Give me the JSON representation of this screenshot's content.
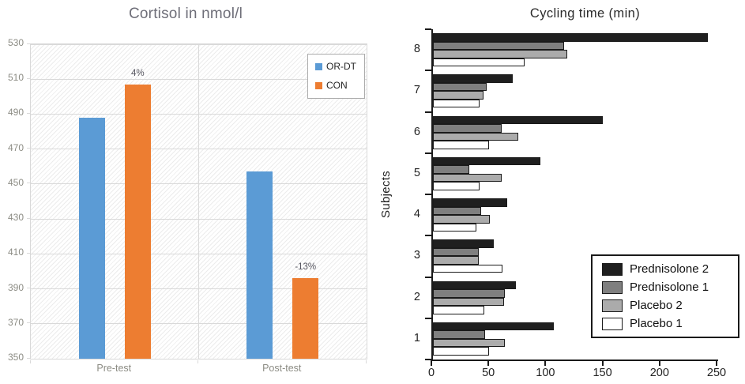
{
  "chart_data": [
    {
      "id": "cortisol",
      "type": "bar",
      "title": "Cortisol in nmol/l",
      "categories": [
        "Pre-test",
        "Post-test"
      ],
      "series": [
        {
          "name": "OR-DT",
          "color": "#5b9bd5",
          "values": [
            488,
            457
          ]
        },
        {
          "name": "CON",
          "color": "#ed7d31",
          "values": [
            507,
            396
          ]
        }
      ],
      "annotations": [
        {
          "text": "4%",
          "category_index": 0,
          "series_index": 1
        },
        {
          "text": "-13%",
          "category_index": 1,
          "series_index": 1
        }
      ],
      "ylim": [
        350,
        530
      ],
      "yticks": [
        350,
        370,
        390,
        410,
        430,
        450,
        470,
        490,
        510,
        530
      ],
      "grid": true,
      "legend_position": "top-right",
      "plot_background": "diagonal-hatch",
      "colors": {
        "title": "#6e6e78",
        "tick_label": "#8c8c84",
        "gridline": "#d9d9d9",
        "annotation": "#55555f"
      }
    },
    {
      "id": "cycling",
      "type": "bar-horizontal",
      "title": "Cycling time (min)",
      "ylabel": "Subjects",
      "categories": [
        "8",
        "7",
        "6",
        "5",
        "4",
        "3",
        "2",
        "1"
      ],
      "series": [
        {
          "name": "Prednisolone 2",
          "color": "#1f1f1f",
          "values": [
            241,
            70,
            149,
            94,
            65,
            53,
            73,
            106
          ]
        },
        {
          "name": "Prednisolone 1",
          "color": "#7f7f7f",
          "values": [
            115,
            47,
            60,
            32,
            42,
            40,
            63,
            46
          ]
        },
        {
          "name": "Placebo 2",
          "color": "#ababab",
          "values": [
            118,
            44,
            75,
            60,
            50,
            40,
            62,
            63
          ]
        },
        {
          "name": "Placebo 1",
          "color": "#ffffff",
          "values": [
            80,
            41,
            49,
            41,
            38,
            61,
            45,
            49
          ]
        }
      ],
      "xlim": [
        0,
        250
      ],
      "xticks": [
        0,
        50,
        100,
        150,
        200,
        250
      ],
      "grid": false,
      "legend_position": "inside-right",
      "colors": {
        "title": "#2b2b2b",
        "axis": "#1a1a1a",
        "bar_border": "#1a1a1a",
        "tick_label": "#222222"
      }
    }
  ]
}
